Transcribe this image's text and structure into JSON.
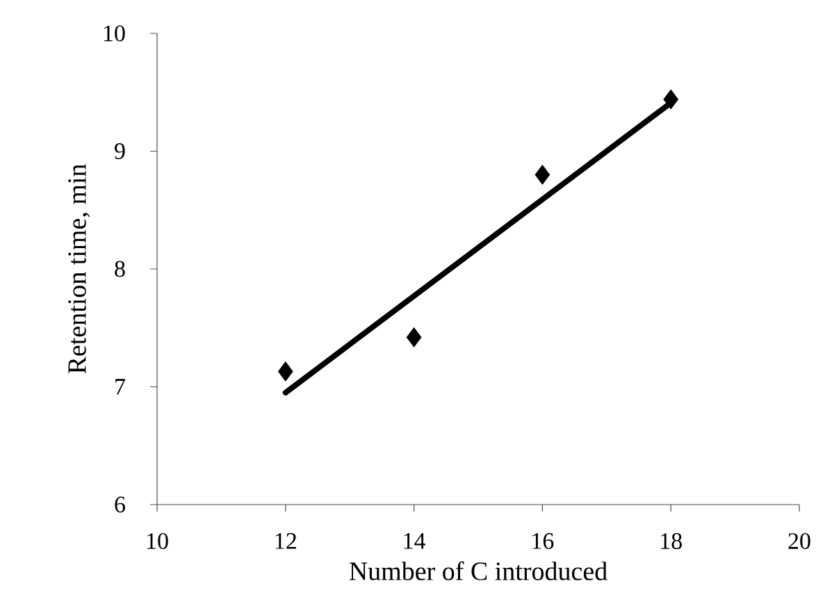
{
  "chart_data": {
    "type": "scatter",
    "xlabel": "Number of C introduced",
    "ylabel": "Retention time, min",
    "xlim": [
      10,
      20
    ],
    "ylim": [
      6,
      10
    ],
    "xticks": [
      10,
      12,
      14,
      16,
      18,
      20
    ],
    "yticks": [
      6,
      7,
      8,
      9,
      10
    ],
    "grid": false,
    "series": [
      {
        "color": "#000000",
        "marker": "diamond",
        "x": [
          12,
          14,
          16,
          18
        ],
        "values": [
          7.13,
          7.42,
          8.8,
          9.44
        ]
      },
      {
        "type": "line",
        "color": "#000000",
        "marker": "none",
        "line_style": "solid",
        "x": [
          12,
          18
        ],
        "values": [
          6.95,
          9.41
        ]
      }
    ]
  }
}
